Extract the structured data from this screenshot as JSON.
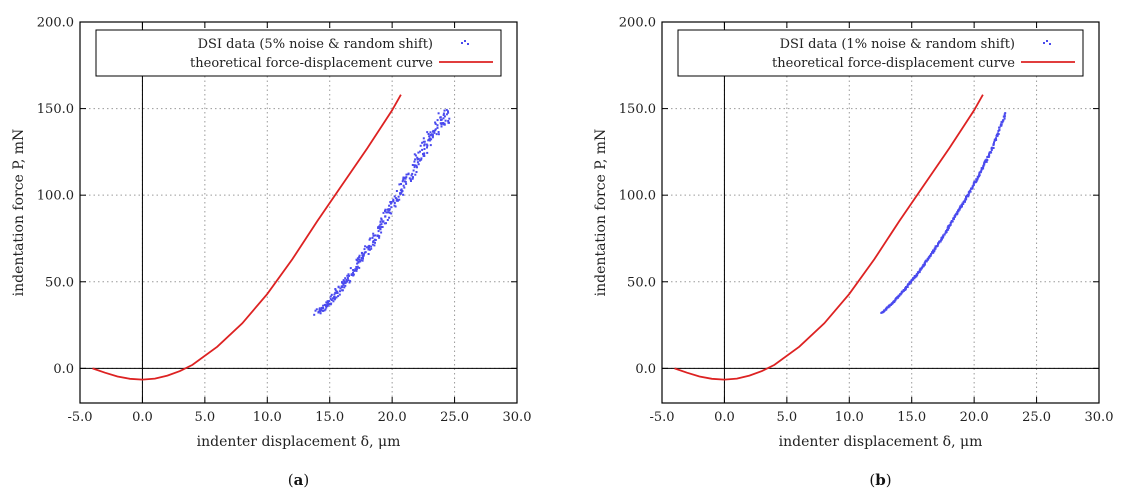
{
  "chart_data": [
    {
      "type": "scatter",
      "panel_label": "(a)",
      "xlabel": "indenter displacement δ, μm",
      "ylabel": "indentation force P, mN",
      "xlim": [
        -5,
        30
      ],
      "ylim": [
        -20,
        200
      ],
      "x_ticks": [
        "-5.0",
        "0.0",
        "5.0",
        "10.0",
        "15.0",
        "20.0",
        "25.0",
        "30.0"
      ],
      "y_ticks": [
        "0.0",
        "50.0",
        "100.0",
        "150.0",
        "200.0"
      ],
      "grid": true,
      "legend_position": "top",
      "colors": {
        "data": "#4a4aee",
        "theory": "#dd2222"
      },
      "series": [
        {
          "name": "DSI data (5% noise & random shift)",
          "kind": "scatter",
          "x_range": [
            14.0,
            24.5
          ],
          "noise": 0.05,
          "points": [
            [
              14.0,
              32
            ],
            [
              15.0,
              38
            ],
            [
              16.0,
              47
            ],
            [
              17.0,
              57
            ],
            [
              18.0,
              68
            ],
            [
              19.0,
              80
            ],
            [
              20.0,
              93
            ],
            [
              21.0,
              106
            ],
            [
              22.0,
              119
            ],
            [
              23.0,
              133
            ],
            [
              24.0,
              144
            ],
            [
              24.5,
              147
            ]
          ]
        },
        {
          "name": "theoretical force-displacement curve",
          "kind": "line",
          "points": [
            [
              -4.0,
              0
            ],
            [
              -3.0,
              -2.5
            ],
            [
              -2.0,
              -4.7
            ],
            [
              -1.0,
              -6.0
            ],
            [
              0.0,
              -6.5
            ],
            [
              1.0,
              -5.9
            ],
            [
              2.0,
              -4.2
            ],
            [
              3.0,
              -1.6
            ],
            [
              4.0,
              2
            ],
            [
              6.0,
              12.5
            ],
            [
              8.0,
              26
            ],
            [
              10.0,
              43
            ],
            [
              12.0,
              63
            ],
            [
              14.0,
              85
            ],
            [
              16.0,
              106
            ],
            [
              18.0,
              127
            ],
            [
              20.0,
              149
            ],
            [
              20.7,
              158
            ]
          ]
        }
      ]
    },
    {
      "type": "scatter",
      "panel_label": "(b)",
      "xlabel": "indenter displacement δ, μm",
      "ylabel": "indentation force P, mN",
      "xlim": [
        -5,
        30
      ],
      "ylim": [
        -20,
        200
      ],
      "x_ticks": [
        "-5.0",
        "0.0",
        "5.0",
        "10.0",
        "15.0",
        "20.0",
        "25.0",
        "30.0"
      ],
      "y_ticks": [
        "0.0",
        "50.0",
        "100.0",
        "150.0",
        "200.0"
      ],
      "grid": true,
      "legend_position": "top",
      "colors": {
        "data": "#4a4aee",
        "theory": "#dd2222"
      },
      "series": [
        {
          "name": "DSI data (1% noise & random shift)",
          "kind": "scatter",
          "x_range": [
            12.6,
            22.5
          ],
          "noise": 0.01,
          "points": [
            [
              12.6,
              32
            ],
            [
              13.5,
              38
            ],
            [
              14.5,
              46
            ],
            [
              15.5,
              55
            ],
            [
              16.5,
              65
            ],
            [
              17.5,
              76
            ],
            [
              18.5,
              88
            ],
            [
              19.5,
              100
            ],
            [
              20.5,
              113
            ],
            [
              21.5,
              128
            ],
            [
              22.5,
              147
            ]
          ]
        },
        {
          "name": "theoretical force-displacement curve",
          "kind": "line",
          "points": [
            [
              -4.0,
              0
            ],
            [
              -3.0,
              -2.5
            ],
            [
              -2.0,
              -4.7
            ],
            [
              -1.0,
              -6.0
            ],
            [
              0.0,
              -6.5
            ],
            [
              1.0,
              -5.9
            ],
            [
              2.0,
              -4.2
            ],
            [
              3.0,
              -1.6
            ],
            [
              4.0,
              2
            ],
            [
              6.0,
              12.5
            ],
            [
              8.0,
              26
            ],
            [
              10.0,
              43
            ],
            [
              12.0,
              63
            ],
            [
              14.0,
              85
            ],
            [
              16.0,
              106
            ],
            [
              18.0,
              127
            ],
            [
              20.0,
              149
            ],
            [
              20.7,
              158
            ]
          ]
        }
      ]
    }
  ]
}
